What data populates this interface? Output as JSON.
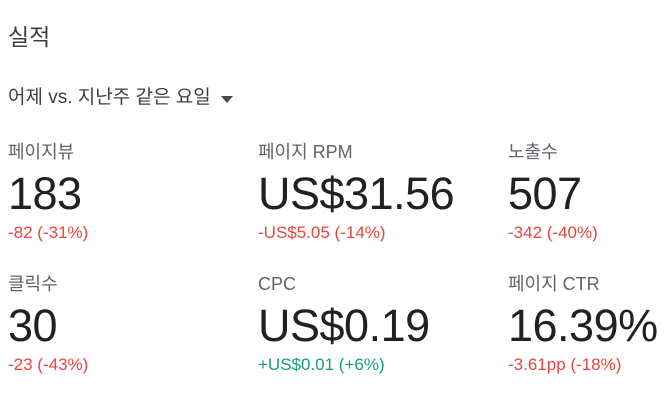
{
  "header": {
    "title": "실적"
  },
  "comparison_selector": {
    "label": "어제 vs. 지난주 같은 요일",
    "icon": "caret-down"
  },
  "colors": {
    "negative": "#e8453c",
    "positive": "#149d78",
    "title": "#3c4043",
    "metric_label": "#5f6368",
    "metric_value": "#202124"
  },
  "metrics": [
    {
      "label": "페이지뷰",
      "value": "183",
      "change": "-82 (-31%)",
      "trend": "negative"
    },
    {
      "label": "페이지 RPM",
      "value": "US$31.56",
      "change": "-US$5.05 (-14%)",
      "trend": "negative"
    },
    {
      "label": "노출수",
      "value": "507",
      "change": "-342 (-40%)",
      "trend": "negative"
    },
    {
      "label": "클릭수",
      "value": "30",
      "change": "-23 (-43%)",
      "trend": "negative"
    },
    {
      "label": "CPC",
      "value": "US$0.19",
      "change": "+US$0.01 (+6%)",
      "trend": "positive"
    },
    {
      "label": "페이지 CTR",
      "value": "16.39%",
      "change": "-3.61pp (-18%)",
      "trend": "negative"
    }
  ]
}
